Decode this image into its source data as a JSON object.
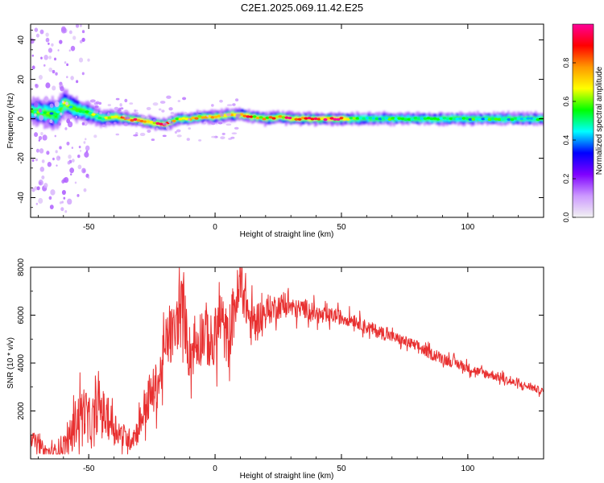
{
  "title": "C2E1.2025.069.11.42.E25",
  "chart_data": [
    {
      "type": "heatmap",
      "title": "C2E1.2025.069.11.42.E25",
      "xlabel": "Height of straight line (km)",
      "ylabel": "Frequency (Hz)",
      "xlim": [
        -73,
        130
      ],
      "ylim": [
        -50,
        48
      ],
      "xticks": [
        -50,
        0,
        50,
        100
      ],
      "yticks": [
        -40,
        -20,
        0,
        20,
        40
      ],
      "colorbar": {
        "label": "Normalized spectral amplitude",
        "range": [
          0,
          1
        ],
        "ticks": [
          "0.0",
          "0.2",
          "0.4",
          "0.6",
          "0.8"
        ],
        "tick_values": [
          0,
          0.2,
          0.4,
          0.6,
          0.8
        ],
        "colors": [
          "#f2f2f2",
          "#cc99ff",
          "#7f00ff",
          "#0000ff",
          "#00ffff",
          "#00ff00",
          "#ffff00",
          "#ff9900",
          "#ff0000",
          "#ff0099"
        ]
      },
      "ridge": {
        "x": [
          -73,
          -68,
          -63,
          -60,
          -56,
          -50,
          -45,
          -40,
          -35,
          -30,
          -25,
          -20,
          -15,
          -10,
          -5,
          0,
          5,
          10,
          15,
          20,
          25,
          30,
          35,
          40,
          45,
          50,
          55,
          60,
          70,
          80,
          90,
          100,
          110,
          120,
          130
        ],
        "freq": [
          4,
          3,
          2,
          8,
          5,
          3,
          0,
          1,
          0,
          -1,
          -2,
          -3,
          0,
          0,
          1,
          1,
          2,
          2,
          1,
          0,
          1,
          0,
          0,
          0,
          0,
          0,
          0,
          0,
          0,
          0,
          0,
          0,
          0,
          0,
          0
        ],
        "amplitude": [
          0.5,
          0.55,
          0.45,
          0.6,
          0.5,
          0.55,
          0.6,
          0.7,
          0.75,
          0.85,
          0.8,
          0.85,
          0.6,
          0.65,
          0.7,
          0.8,
          0.75,
          0.85,
          0.75,
          0.7,
          0.75,
          0.85,
          0.8,
          0.85,
          0.9,
          0.85,
          0.55,
          0.5,
          0.5,
          0.5,
          0.55,
          0.5,
          0.5,
          0.5,
          0.55
        ],
        "halfwidth_hz": [
          6,
          7,
          8,
          7,
          6,
          5,
          4,
          3.5,
          3,
          3,
          3,
          3,
          3,
          3,
          3,
          3,
          3,
          3,
          3,
          3,
          3,
          3,
          3,
          3,
          3,
          3,
          3,
          3,
          3,
          3,
          3,
          3,
          3,
          3,
          3
        ]
      }
    },
    {
      "type": "line",
      "xlabel": "Height of straight line (km)",
      "ylabel": "SNR (10 * v/v)",
      "xlim": [
        -73,
        130
      ],
      "ylim": [
        0,
        8000
      ],
      "xticks": [
        -50,
        0,
        50,
        100
      ],
      "yticks": [
        2000,
        4000,
        6000,
        8000
      ],
      "line_color": "#e83030",
      "series": [
        {
          "x": [
            -73,
            -70,
            -67,
            -64,
            -61,
            -58,
            -55,
            -52,
            -49,
            -46,
            -43,
            -40,
            -37,
            -34,
            -31,
            -28,
            -25,
            -22,
            -19,
            -16,
            -13,
            -10,
            -7,
            -4,
            -1,
            2,
            5,
            8,
            11,
            14,
            17,
            20,
            23,
            26,
            29,
            32,
            35,
            38,
            41,
            44,
            47,
            50,
            55,
            60,
            65,
            70,
            75,
            80,
            85,
            90,
            95,
            100,
            105,
            110,
            115,
            120,
            125,
            130
          ],
          "y": [
            900,
            600,
            300,
            250,
            500,
            700,
            1600,
            2100,
            1300,
            2300,
            1700,
            1400,
            1000,
            800,
            1100,
            2100,
            2700,
            3300,
            5000,
            5300,
            6500,
            4400,
            4900,
            5400,
            4600,
            5900,
            4900,
            6500,
            7300,
            5600,
            5900,
            6100,
            6300,
            6400,
            6400,
            6200,
            6300,
            6200,
            6000,
            5900,
            6000,
            5900,
            5800,
            5500,
            5300,
            5100,
            4900,
            4700,
            4400,
            4200,
            4000,
            3800,
            3600,
            3500,
            3300,
            3100,
            3000,
            2800
          ],
          "jitter": [
            400,
            400,
            400,
            400,
            600,
            700,
            1300,
            1300,
            1100,
            1300,
            1100,
            900,
            700,
            600,
            700,
            1100,
            1200,
            1300,
            1500,
            1500,
            1600,
            1500,
            1500,
            1600,
            1600,
            1600,
            1500,
            1600,
            1500,
            1200,
            900,
            800,
            700,
            650,
            600,
            550,
            500,
            500,
            450,
            450,
            400,
            400,
            350,
            350,
            350,
            300,
            300,
            300,
            300,
            300,
            280,
            260,
            250,
            250,
            230,
            220,
            200,
            180
          ]
        }
      ]
    }
  ]
}
